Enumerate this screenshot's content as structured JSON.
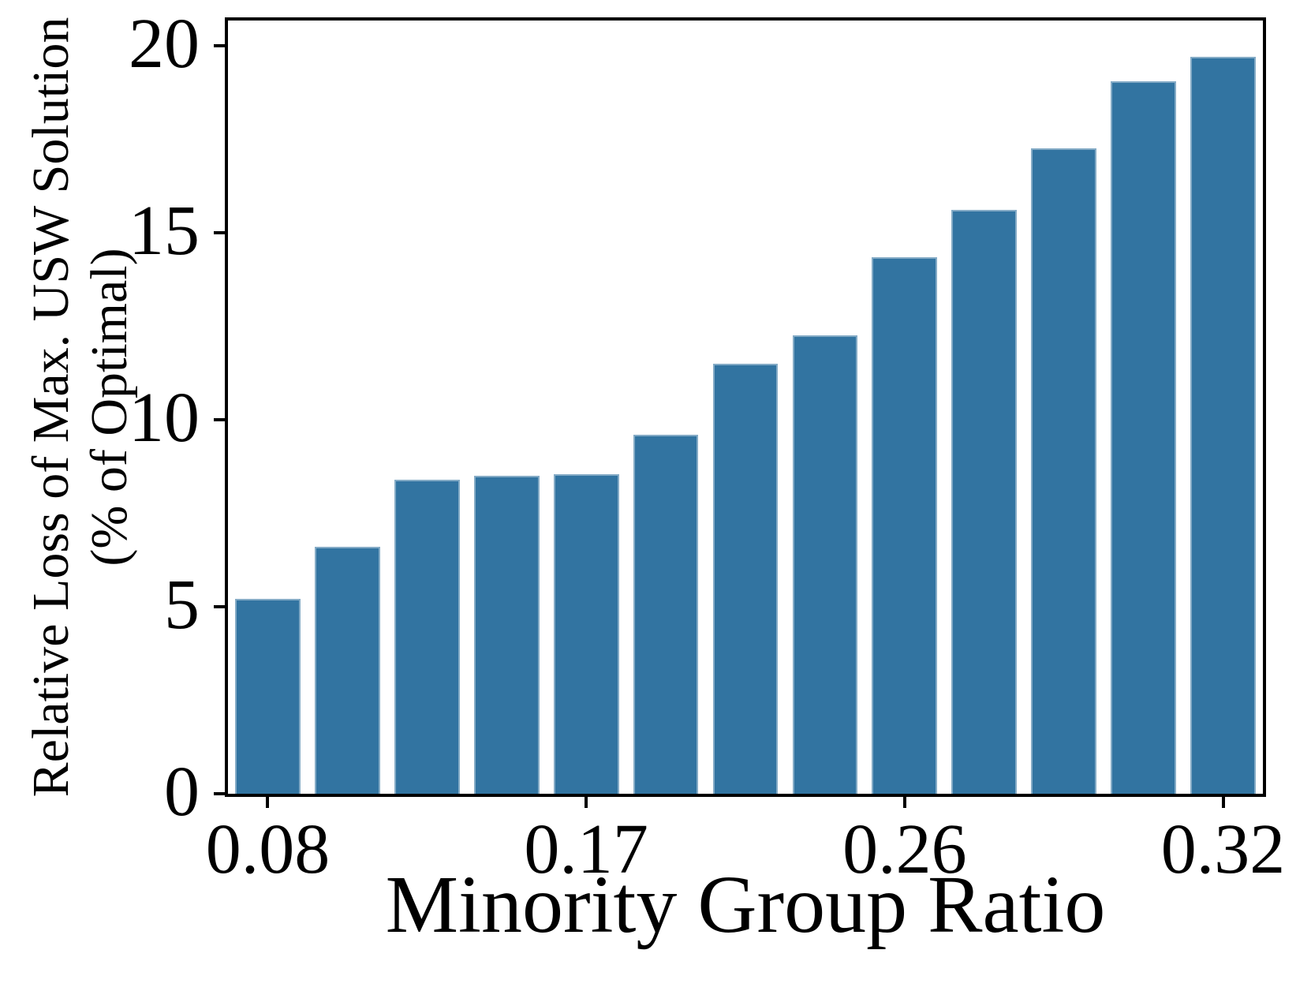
{
  "figure": {
    "background": "#ffffff",
    "bar_color": "#3274a1",
    "bar_edge_color": "rgba(255,255,255,0.40)",
    "axis_color": "#000000",
    "text_color": "#000000"
  },
  "chart_data": {
    "type": "bar",
    "title": "",
    "xlabel": "Minority Group Ratio",
    "ylabel": "Relative Loss of Max. USW Solution (% of Optimal)",
    "ylabel_lines": [
      "Relative Loss of Max. USW Solution",
      "(% of Optimal)"
    ],
    "n_bars": 13,
    "values": [
      5.2,
      6.6,
      8.4,
      8.5,
      8.55,
      9.6,
      11.5,
      12.25,
      14.35,
      15.6,
      17.25,
      19.05,
      19.7
    ],
    "x_ticks": [
      {
        "bar_index": 0,
        "label": "0.08"
      },
      {
        "bar_index": 4,
        "label": "0.17"
      },
      {
        "bar_index": 8,
        "label": "0.26"
      },
      {
        "bar_index": 12,
        "label": "0.32"
      }
    ],
    "y_ticks": [
      0,
      5,
      10,
      15,
      20
    ],
    "y_tick_labels": [
      "0",
      "5",
      "10",
      "15",
      "20"
    ],
    "ylim": [
      0,
      20.67
    ],
    "bar_relative_width": 0.82,
    "grid": false,
    "legend": null
  }
}
